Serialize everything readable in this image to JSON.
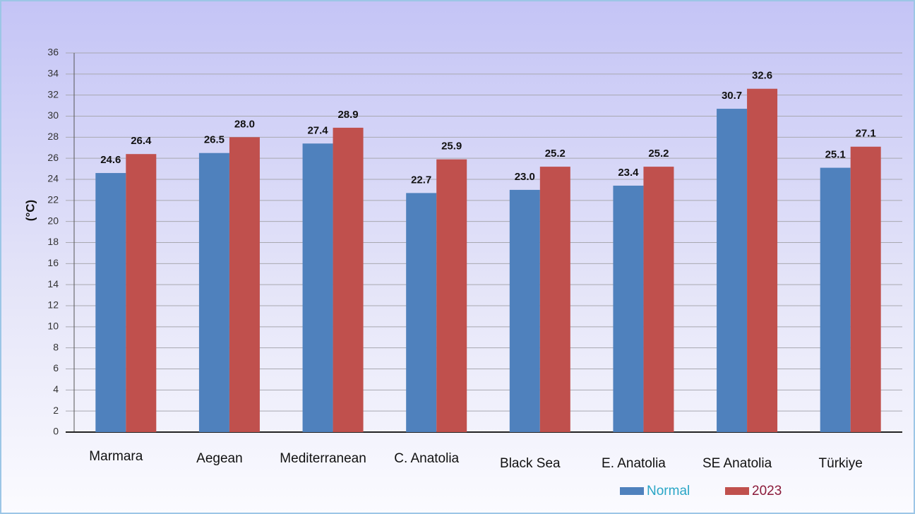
{
  "chart_data": {
    "type": "bar",
    "y_label": "(°C)",
    "categories": [
      "Marmara",
      "Aegean",
      "Mediterranean",
      "C. Anatolia",
      "Black Sea",
      "E. Anatolia",
      "SE Anatolia",
      "Türkiye"
    ],
    "series": [
      {
        "name": "Normal",
        "color": "#4f81bd",
        "values": [
          24.6,
          26.5,
          27.4,
          22.7,
          23.0,
          23.4,
          30.7,
          25.1
        ],
        "value_labels": [
          "24.6",
          "26.5",
          "27.4",
          "22.7",
          "23.0",
          "23.4",
          "30.7",
          "25.1"
        ]
      },
      {
        "name": "2023",
        "color": "#c0504d",
        "values": [
          26.4,
          28.0,
          28.9,
          25.9,
          25.2,
          25.2,
          32.6,
          27.1
        ],
        "value_labels": [
          "26.4",
          "28.0",
          "28.9",
          "25.9",
          "25.2",
          "25.2",
          "32.6",
          "27.1"
        ]
      }
    ],
    "ylim": [
      0,
      36
    ],
    "yticks": [
      0,
      2,
      4,
      6,
      8,
      10,
      12,
      14,
      16,
      18,
      20,
      22,
      24,
      26,
      28,
      30,
      32,
      34,
      36
    ],
    "grid": true,
    "legend": "bottom"
  }
}
